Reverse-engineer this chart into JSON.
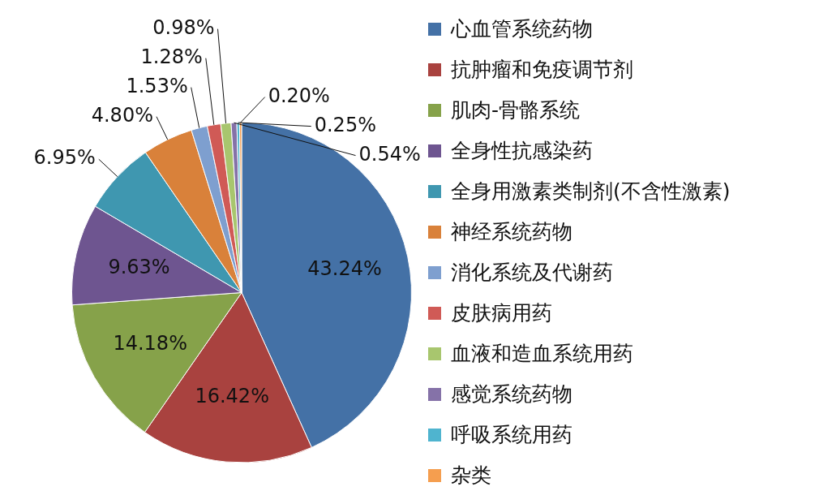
{
  "chart_data": {
    "type": "pie",
    "categories": [
      "心血管系统药物",
      "抗肿瘤和免疫调节剂",
      "肌肉-骨骼系统",
      "全身性抗感染药",
      "全身用激素类制剂(不含性激素)",
      "神经系统药物",
      "消化系统及代谢药",
      "皮肤病用药",
      "血液和造血系统用药",
      "感觉系统药物",
      "呼吸系统用药",
      "杂类"
    ],
    "values": [
      43.24,
      16.42,
      14.18,
      9.63,
      6.95,
      4.8,
      1.53,
      1.28,
      0.98,
      0.54,
      0.25,
      0.2
    ],
    "value_labels": [
      "43.24%",
      "16.42%",
      "14.18%",
      "9.63%",
      "6.95%",
      "4.80%",
      "1.53%",
      "1.28%",
      "0.98%",
      "0.54%",
      "0.25%",
      "0.20%"
    ],
    "colors": [
      "#4471a6",
      "#a9423f",
      "#86a24a",
      "#6e5590",
      "#3f97b0",
      "#d9813a",
      "#7e9fcf",
      "#d05a56",
      "#a8c66e",
      "#8572a8",
      "#4fb4cf",
      "#f59e4f"
    ],
    "legend": "right"
  }
}
